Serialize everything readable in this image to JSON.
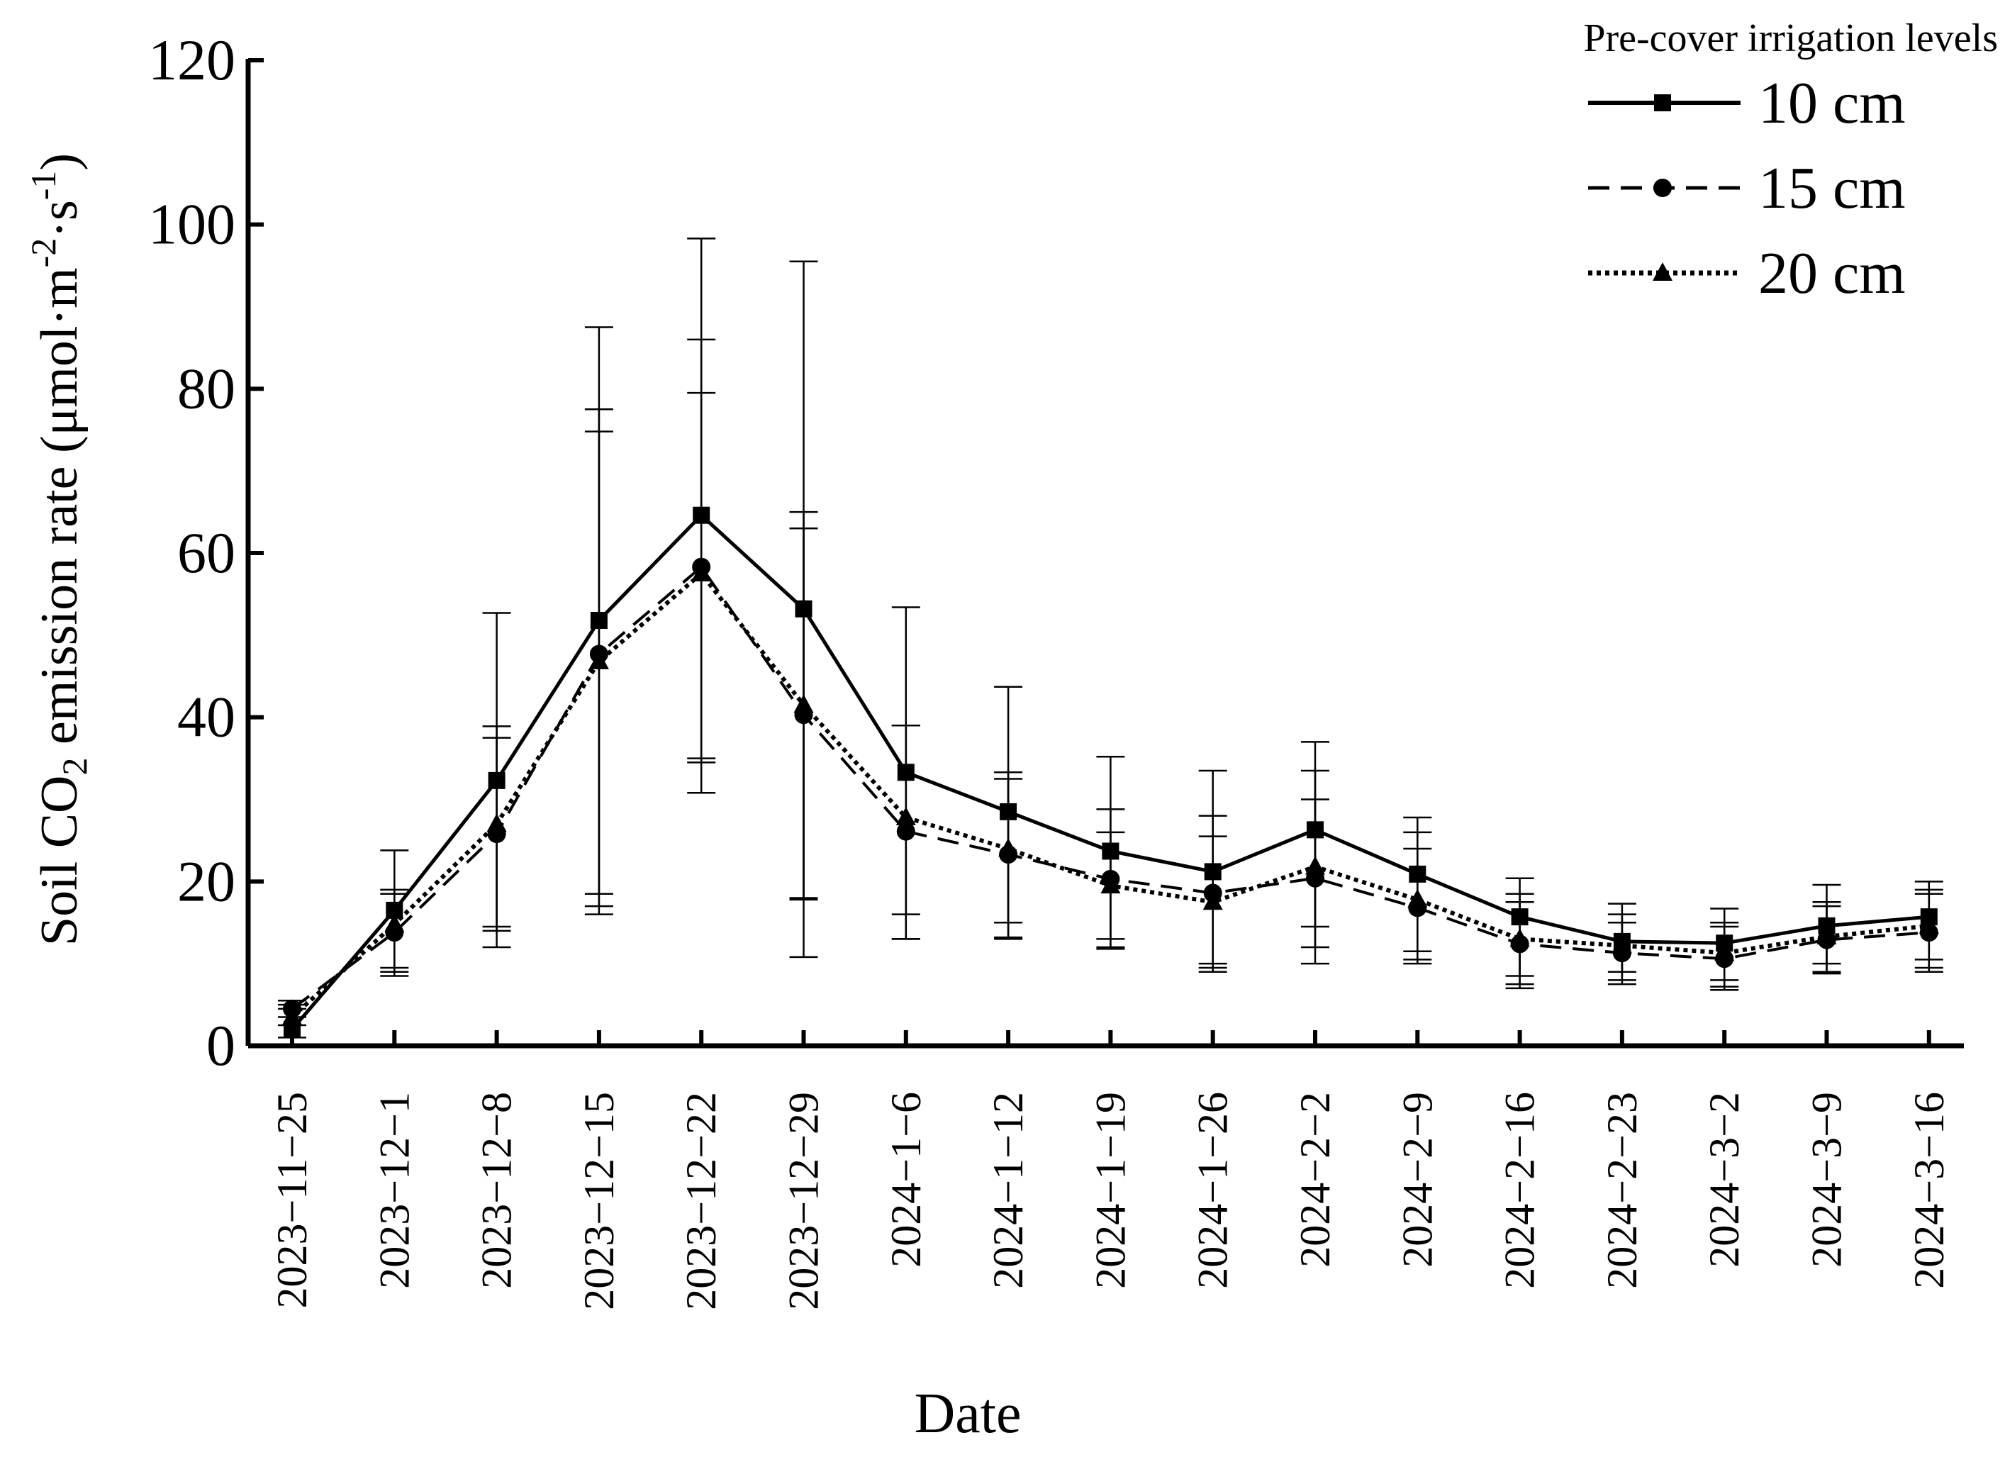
{
  "chart_data": {
    "type": "line",
    "title": "",
    "xlabel": "Date",
    "ylabel_prefix": "Soil CO",
    "ylabel_sub": "2",
    "ylabel_mid": " emission rate (μmol·m",
    "ylabel_sup1": "-2",
    "ylabel_dot": "·s",
    "ylabel_sup2": "-1",
    "ylabel_end": ")",
    "ylim": [
      0,
      120
    ],
    "yticks": [
      0,
      20,
      40,
      60,
      80,
      100,
      120
    ],
    "ytick_labels": [
      "0",
      "20",
      "40",
      "60",
      "80",
      "100",
      "120"
    ],
    "categories": [
      "2023−11−25",
      "2023−12−1",
      "2023−12−8",
      "2023−12−15",
      "2023−12−22",
      "2023−12−29",
      "2024−1−6",
      "2024−1−12",
      "2024−1−19",
      "2024−1−26",
      "2024−2−2",
      "2024−2−9",
      "2024−2−16",
      "2024−2−23",
      "2024−3−2",
      "2024−3−9",
      "2024−3−16"
    ],
    "legend_title": "Pre-cover irrigation levels",
    "legend_position": "top-right",
    "series": [
      {
        "name": "10 cm",
        "marker": "square",
        "line": "solid",
        "values": [
          2.0,
          16.5,
          32.3,
          51.8,
          64.6,
          53.2,
          33.3,
          28.5,
          23.7,
          21.2,
          26.3,
          20.9,
          15.7,
          12.7,
          12.5,
          14.6,
          15.7
        ],
        "err_high": [
          4.5,
          23.8,
          52.7,
          87.5,
          98.3,
          95.5,
          53.4,
          43.7,
          35.2,
          33.5,
          37.0,
          27.8,
          20.4,
          17.3,
          16.7,
          19.6,
          20.0
        ],
        "err_low": [
          1.0,
          9.0,
          14.5,
          16.0,
          34.5,
          10.8,
          13.0,
          13.2,
          12.0,
          9.0,
          10.0,
          10.0,
          7.0,
          8.0,
          7.2,
          9.0,
          9.5
        ]
      },
      {
        "name": "15 cm",
        "marker": "circle",
        "line": "dashed",
        "values": [
          4.5,
          13.8,
          25.8,
          47.7,
          58.3,
          40.3,
          26.1,
          23.3,
          20.3,
          18.6,
          20.4,
          16.8,
          12.4,
          11.3,
          10.6,
          12.9,
          13.8
        ],
        "err_high": [
          5.5,
          18.5,
          38.9,
          77.5,
          86.0,
          65.0,
          39.0,
          33.3,
          28.8,
          28.0,
          33.5,
          26.0,
          18.5,
          16.0,
          15.0,
          17.0,
          19.0
        ],
        "err_low": [
          3.5,
          8.5,
          12.0,
          17.0,
          30.8,
          17.8,
          13.0,
          13.0,
          11.8,
          9.5,
          12.0,
          10.5,
          7.5,
          7.5,
          6.8,
          8.8,
          9.0
        ]
      },
      {
        "name": "20 cm",
        "marker": "triangle",
        "line": "dotted",
        "values": [
          3.5,
          14.8,
          27.0,
          46.8,
          57.5,
          41.5,
          27.8,
          24.0,
          19.5,
          17.5,
          21.8,
          17.8,
          13.0,
          12.2,
          11.3,
          13.3,
          14.6
        ],
        "err_high": [
          5.0,
          19.0,
          37.5,
          74.8,
          79.5,
          63.0,
          39.0,
          32.5,
          26.0,
          25.5,
          30.0,
          24.0,
          17.5,
          15.0,
          14.5,
          17.5,
          18.5
        ],
        "err_low": [
          2.5,
          9.5,
          14.0,
          18.5,
          35.0,
          18.0,
          16.0,
          15.0,
          13.0,
          10.0,
          14.5,
          11.5,
          8.5,
          9.0,
          8.0,
          10.0,
          10.5
        ]
      }
    ]
  }
}
